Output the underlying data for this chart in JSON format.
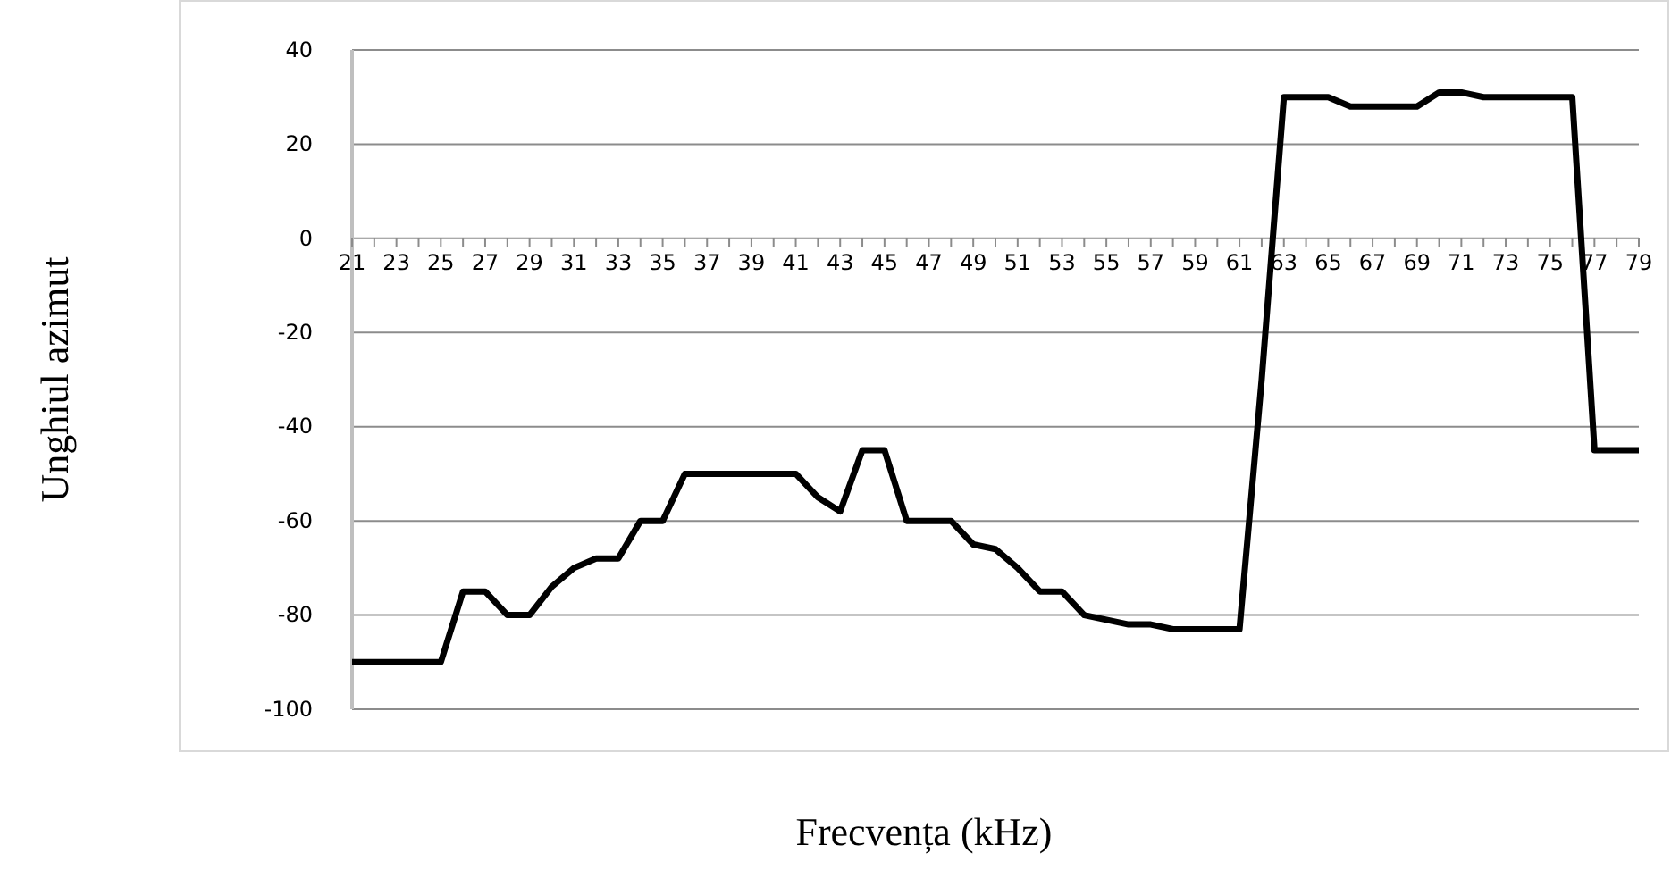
{
  "chart_data": {
    "type": "line",
    "xlabel": "Frecvența (kHz)",
    "ylabel": "Unghiul azimut",
    "categories": [
      "21",
      null,
      "23",
      null,
      "25",
      null,
      "27",
      null,
      "29",
      null,
      "31",
      null,
      "33",
      null,
      "35",
      null,
      "37",
      null,
      "39",
      null,
      "41",
      null,
      "43",
      null,
      "45",
      null,
      "47",
      null,
      "49",
      null,
      "51",
      null,
      "53",
      null,
      "55",
      null,
      "57",
      null,
      "59",
      null,
      "61",
      null,
      "63",
      null,
      "65",
      null,
      "67",
      null,
      "69",
      null,
      "71",
      null,
      "73",
      null,
      "75",
      null,
      "77",
      null,
      "79"
    ],
    "series": [
      {
        "color": "#000000",
        "values": [
          -90,
          -90,
          -90,
          -90,
          -90,
          -75,
          -75,
          -80,
          -80,
          -74,
          -70,
          -68,
          -68,
          -60,
          -60,
          -50,
          -50,
          -50,
          -50,
          -50,
          -50,
          -55,
          -58,
          -45,
          -45,
          -60,
          -60,
          -60,
          -65,
          -66,
          -70,
          -75,
          -75,
          -80,
          -81,
          -82,
          -82,
          -83,
          -83,
          -83,
          -83,
          -30,
          30,
          30,
          30,
          28,
          28,
          28,
          28,
          31,
          31,
          30,
          30,
          30,
          30,
          30,
          -45,
          -45,
          -45
        ]
      }
    ],
    "ylim": [
      -100,
      40
    ],
    "yticks": [
      -100,
      -80,
      -60,
      -40,
      -20,
      0,
      20,
      40
    ],
    "grid": "y",
    "marker": "none",
    "line_style": "solid"
  }
}
